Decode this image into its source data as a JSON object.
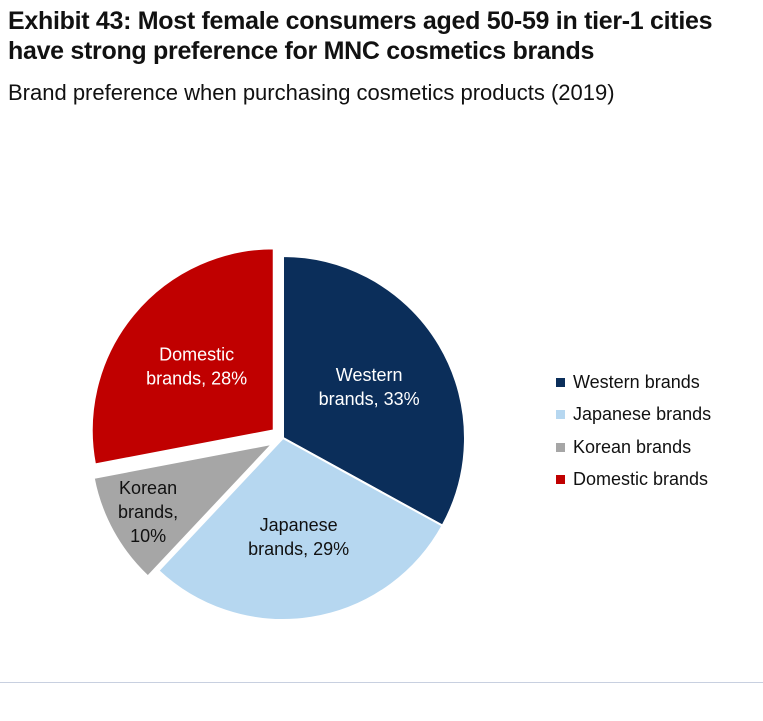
{
  "title": "Exhibit 43: Most female consumers aged 50-59 in tier-1 cities have strong preference for MNC cosmetics brands",
  "subtitle": "Brand preference when purchasing cosmetics products (2019)",
  "chart_data": {
    "type": "pie",
    "title": "Exhibit 43: Most female consumers aged 50-59 in tier-1 cities have strong preference for MNC cosmetics brands",
    "subtitle": "Brand preference when purchasing cosmetics products (2019)",
    "legend_position": "right",
    "slices": [
      {
        "name": "Western brands",
        "value": 33,
        "label_lines": [
          "Western",
          "brands, 33%"
        ],
        "color": "#0b2e5a",
        "label_color": "#ffffff",
        "exploded": false
      },
      {
        "name": "Japanese brands",
        "value": 29,
        "label_lines": [
          "Japanese",
          "brands, 29%"
        ],
        "color": "#b6d7f0",
        "label_color": "#111111",
        "exploded": false
      },
      {
        "name": "Korean brands",
        "value": 10,
        "label_lines": [
          "Korean",
          "brands,",
          "10%"
        ],
        "color": "#a6a6a6",
        "label_color": "#111111",
        "exploded": true
      },
      {
        "name": "Domestic brands",
        "value": 28,
        "label_lines": [
          "Domestic",
          "brands, 28%"
        ],
        "color": "#c00000",
        "label_color": "#ffffff",
        "exploded": true
      }
    ]
  }
}
